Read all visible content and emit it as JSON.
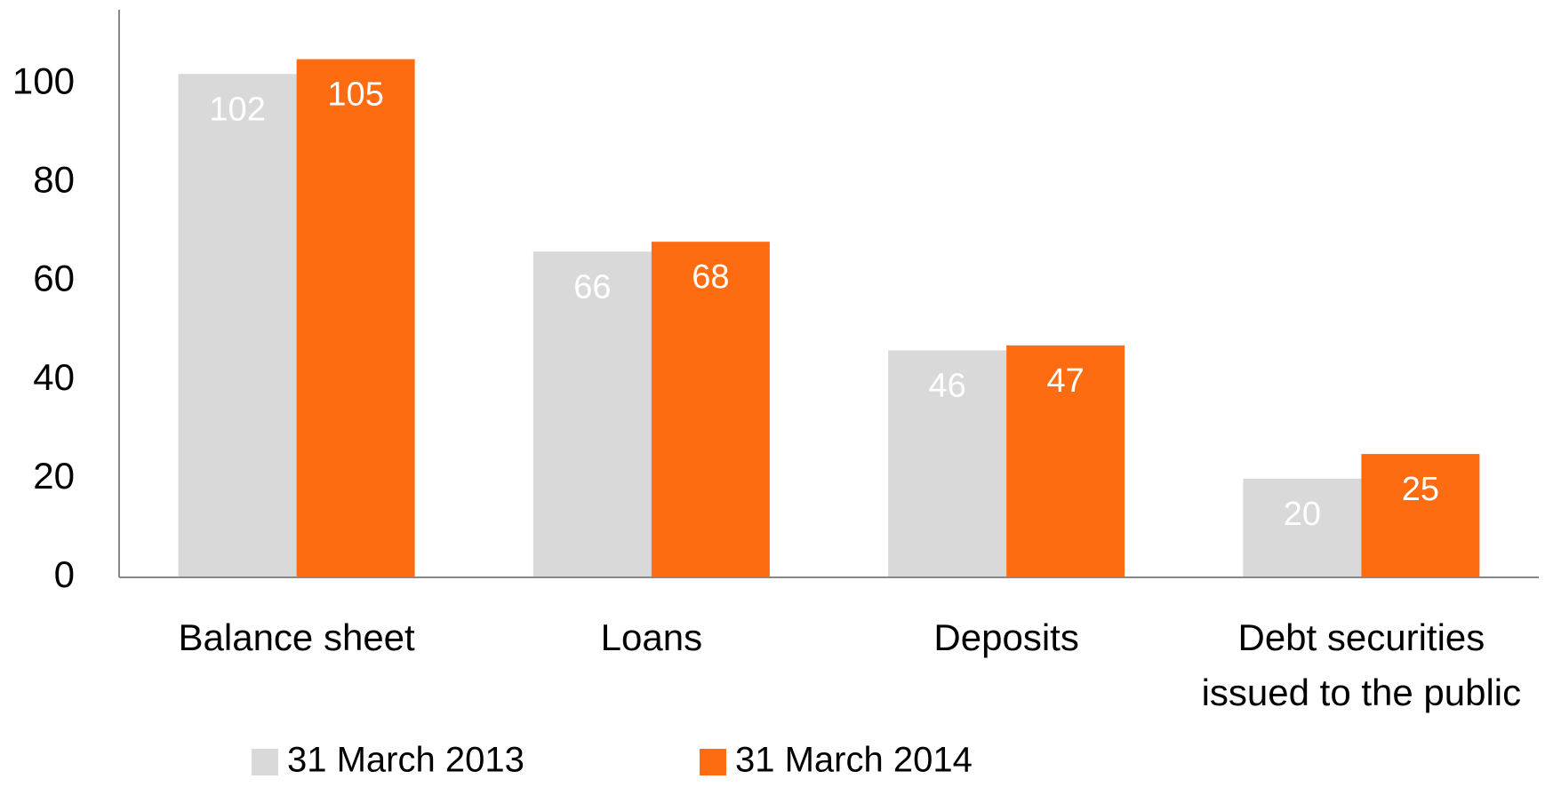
{
  "chart_data": {
    "type": "bar",
    "categories": [
      "Balance sheet",
      "Loans",
      "Deposits",
      "Debt securities issued to the public"
    ],
    "series": [
      {
        "name": "31 March 2013",
        "color": "#d9d9d9",
        "label_color": "#ffffff",
        "values": [
          102,
          66,
          46,
          20
        ]
      },
      {
        "name": "31 March 2014",
        "color": "#fe6c12",
        "label_color": "#ffffff",
        "values": [
          105,
          68,
          47,
          25
        ]
      }
    ],
    "ylim": [
      0,
      115
    ],
    "yticks": [
      0,
      20,
      40,
      60,
      80,
      100
    ],
    "grid": false,
    "legend": "bottom"
  }
}
